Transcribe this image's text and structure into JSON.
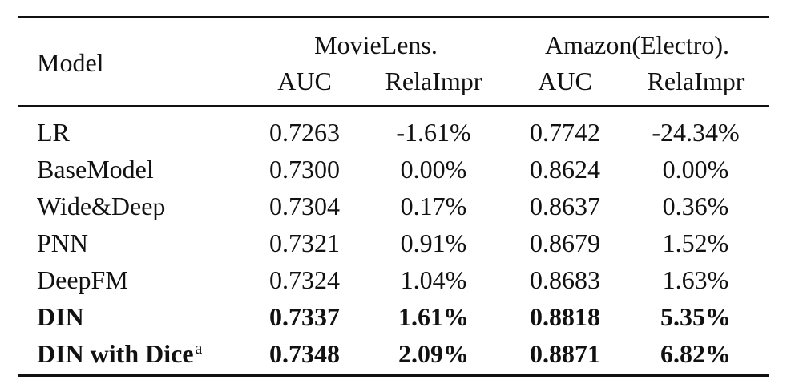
{
  "table": {
    "header": {
      "model_label": "Model",
      "groups": [
        "MovieLens.",
        "Amazon(Electro)."
      ],
      "subcolumns": [
        "AUC",
        "RelaImpr",
        "AUC",
        "RelaImpr"
      ]
    },
    "rows": [
      {
        "model": "LR",
        "values": [
          "0.7263",
          "-1.61%",
          "0.7742",
          "-24.34%"
        ],
        "bold": false,
        "footnote": ""
      },
      {
        "model": "BaseModel",
        "values": [
          "0.7300",
          "0.00%",
          "0.8624",
          "0.00%"
        ],
        "bold": false,
        "footnote": ""
      },
      {
        "model": "Wide&Deep",
        "values": [
          "0.7304",
          "0.17%",
          "0.8637",
          "0.36%"
        ],
        "bold": false,
        "footnote": ""
      },
      {
        "model": "PNN",
        "values": [
          "0.7321",
          "0.91%",
          "0.8679",
          "1.52%"
        ],
        "bold": false,
        "footnote": ""
      },
      {
        "model": "DeepFM",
        "values": [
          "0.7324",
          "1.04%",
          "0.8683",
          "1.63%"
        ],
        "bold": false,
        "footnote": ""
      },
      {
        "model": "DIN",
        "values": [
          "0.7337",
          "1.61%",
          "0.8818",
          "5.35%"
        ],
        "bold": true,
        "footnote": ""
      },
      {
        "model": "DIN with Dice",
        "values": [
          "0.7348",
          "2.09%",
          "0.8871",
          "6.82%"
        ],
        "bold": true,
        "footnote": "a"
      }
    ]
  }
}
